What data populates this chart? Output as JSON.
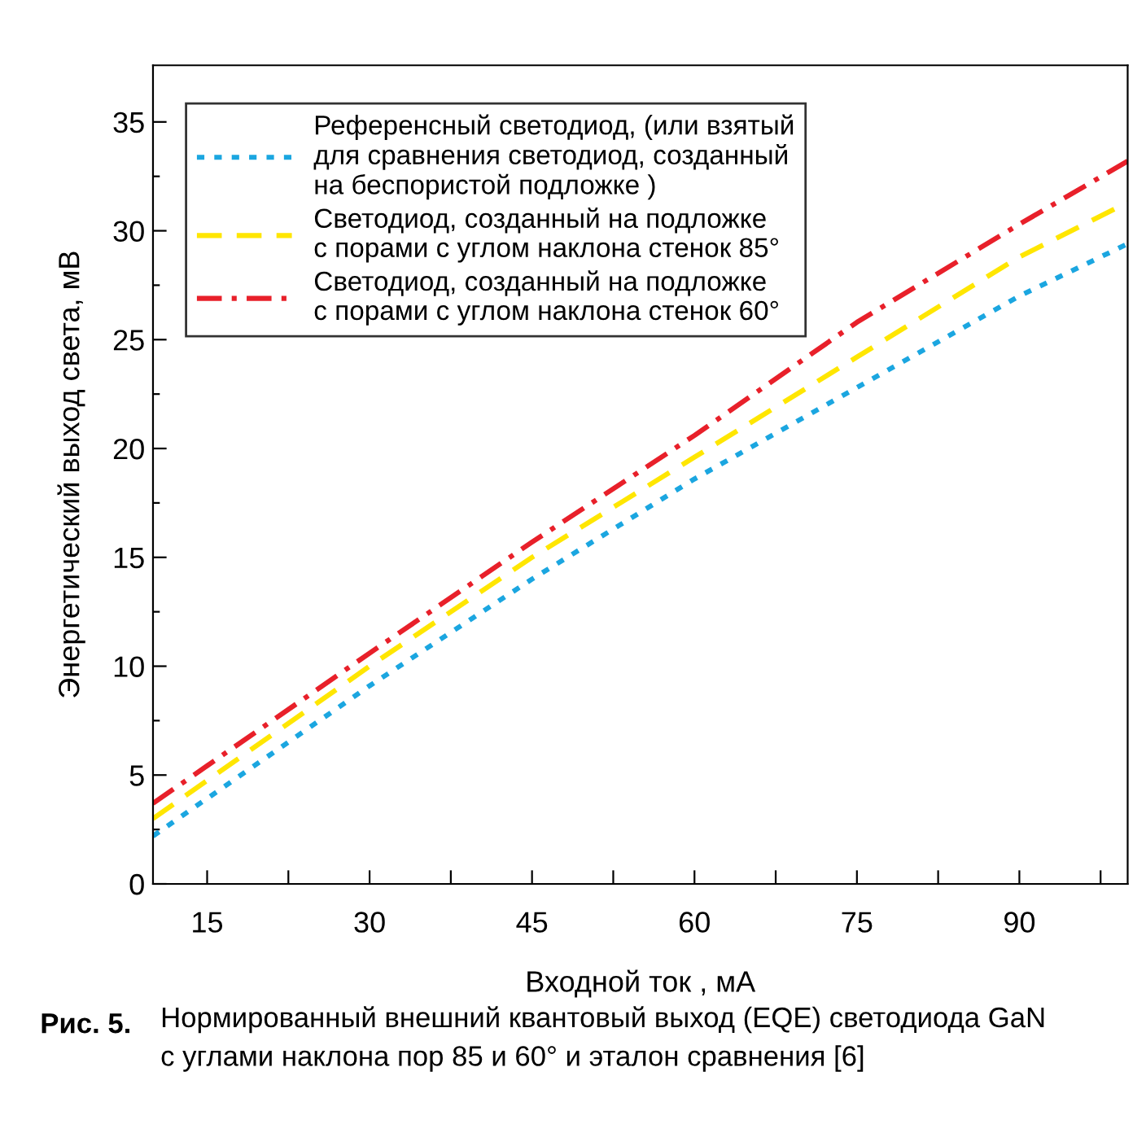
{
  "chart_data": {
    "type": "line",
    "xlabel": "Входной ток , мА",
    "ylabel": "Энергетический выход света, мВ",
    "x": [
      10,
      30,
      45,
      60,
      75,
      90,
      100
    ],
    "xlim": [
      10,
      100
    ],
    "xticks": [
      15,
      {
        "value": 22.5,
        "label": null
      },
      30,
      {
        "value": 37.5,
        "label": null
      },
      45,
      {
        "value": 52.5,
        "label": null
      },
      60,
      {
        "value": 67.5,
        "label": null
      },
      75,
      {
        "value": 82.5,
        "label": null
      },
      90,
      {
        "value": 97.5,
        "label": null
      }
    ],
    "ylim": [
      0,
      37.6
    ],
    "yticks": [
      0,
      {
        "value": 2.5,
        "label": null
      },
      5,
      {
        "value": 7.5,
        "label": null
      },
      10,
      {
        "value": 12.5,
        "label": null
      },
      15,
      {
        "value": 17.5,
        "label": null
      },
      20,
      {
        "value": 22.5,
        "label": null
      },
      25,
      {
        "value": 27.5,
        "label": null
      },
      30,
      {
        "value": 32.5,
        "label": null
      },
      35
    ],
    "grid": false,
    "legend": "top left",
    "marker": "none",
    "series": [
      {
        "name": "Референсный светодиод, (или взятый\nдля сравнения светодиод, созданный\nна беспористой подложке )",
        "color": "#1ba6e0",
        "line_style": "dotted",
        "values": [
          2.2,
          9.1,
          14.0,
          18.6,
          22.8,
          27.0,
          29.4
        ]
      },
      {
        "name": "Светодиод, созданный на подложке\nс порами с углом наклона стенок 85°",
        "color": "#ffe600",
        "line_style": "dashed",
        "values": [
          3.0,
          10.0,
          15.0,
          19.6,
          24.2,
          28.8,
          31.3
        ]
      },
      {
        "name": "Светодиод, созданный на подложке\nс порами с углом наклона стенок 60°",
        "color": "#e8202a",
        "line_style": "dashdot",
        "values": [
          3.7,
          10.6,
          15.7,
          20.6,
          25.8,
          30.3,
          33.2
        ]
      }
    ],
    "annotations": [
      "Рис. 5.",
      "Нормированный внешний квантовый выход (EQE) светодиода GaN\nс углами наклона пор 85 и 60° и эталон сравнения [6]"
    ]
  }
}
